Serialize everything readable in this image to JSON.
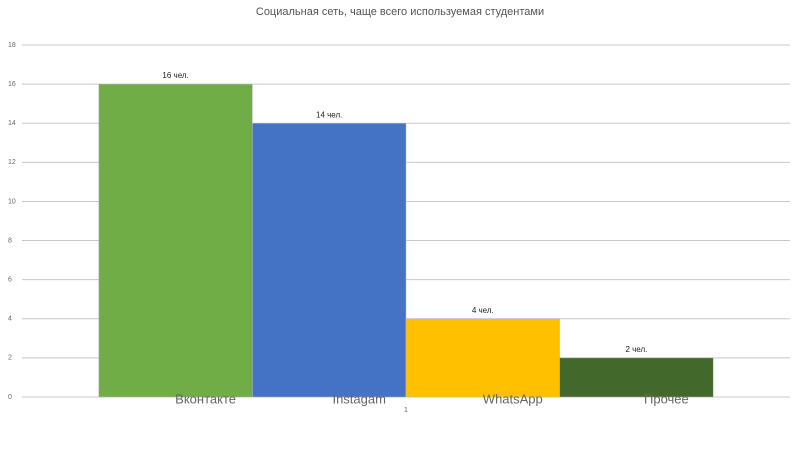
{
  "chart_data": {
    "type": "bar",
    "title": "Социальная сеть, чаще всего используемая студентами",
    "categories": [
      "1"
    ],
    "series": [
      {
        "name": "Вконтакте",
        "color": "#70ad47",
        "values": [
          16
        ],
        "value_labels": [
          "16 чел."
        ]
      },
      {
        "name": "Instagam",
        "color": "#4472c4",
        "values": [
          14
        ],
        "value_labels": [
          "14 чел."
        ]
      },
      {
        "name": "WhatsApp",
        "color": "#ffc000",
        "values": [
          4
        ],
        "value_labels": [
          "4 чел."
        ]
      },
      {
        "name": "Прочее",
        "color": "#43682b",
        "values": [
          2
        ],
        "value_labels": [
          "2 чел."
        ]
      }
    ],
    "ylim": [
      0,
      18
    ],
    "yticks": [
      0,
      2,
      4,
      6,
      8,
      10,
      12,
      14,
      16,
      18
    ],
    "grid": true
  }
}
